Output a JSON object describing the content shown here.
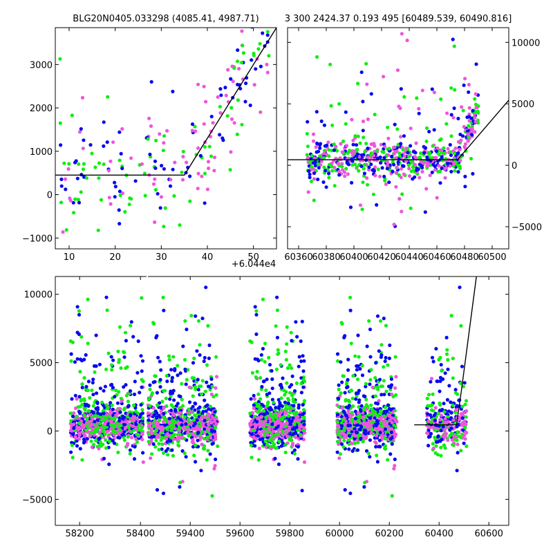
{
  "titles": {
    "left": "BLG20N0405.033298 (4085.41, 4987.71)",
    "right": "3 300 2424.37 0.193 495 [60489.539, 60490.816]"
  },
  "offset_label": "+6.044e4",
  "colors": {
    "blue": "#0a0aee",
    "green": "#11ee11",
    "magenta": "#ee55dd",
    "fit": "#000000"
  },
  "chart_data": [
    {
      "id": "top-left",
      "type": "scatter",
      "title": "BLG20N0405.033298 (4085.41, 4987.71)",
      "xlim": [
        7,
        55
      ],
      "ylim": [
        -1250,
        3850
      ],
      "xticks": [
        10,
        20,
        30,
        40,
        50
      ],
      "yticks": [
        -1000,
        0,
        1000,
        2000,
        3000
      ],
      "x_offset_label": "+6.044e4",
      "fit_line": [
        [
          7,
          450
        ],
        [
          35,
          450
        ],
        [
          55,
          3850
        ]
      ]
    },
    {
      "id": "top-right",
      "type": "scatter",
      "title": "3 300 2424.37 0.193 495 [60489.539, 60490.816]",
      "xlim": [
        60352,
        60512
      ],
      "ylim": [
        -6800,
        11200
      ],
      "xticks": [
        60360,
        60380,
        60400,
        60420,
        60440,
        60460,
        60480,
        60500
      ],
      "yticks": [
        -5000,
        0,
        5000,
        10000
      ],
      "fit_line": [
        [
          60352,
          450
        ],
        [
          60475,
          450
        ],
        [
          60512,
          5300
        ]
      ]
    },
    {
      "id": "bottom",
      "type": "scatter",
      "xlim": [
        58120,
        60680
      ],
      "ylim": [
        -6900,
        11300
      ],
      "broken_x": [
        58400,
        59230
      ],
      "xticks": [
        58200,
        58400,
        59400,
        59600,
        59800,
        60000,
        60200,
        60400,
        60600
      ],
      "yticks": [
        -5000,
        0,
        5000,
        10000
      ],
      "seasons": [
        [
          58170,
          58410
        ],
        [
          59230,
          59510
        ],
        [
          59640,
          59860
        ],
        [
          59990,
          60230
        ],
        [
          60350,
          60510
        ]
      ],
      "fit_line": [
        [
          60300,
          450
        ],
        [
          60470,
          450
        ],
        [
          60490,
          3000
        ],
        [
          60550,
          11300
        ]
      ]
    }
  ]
}
